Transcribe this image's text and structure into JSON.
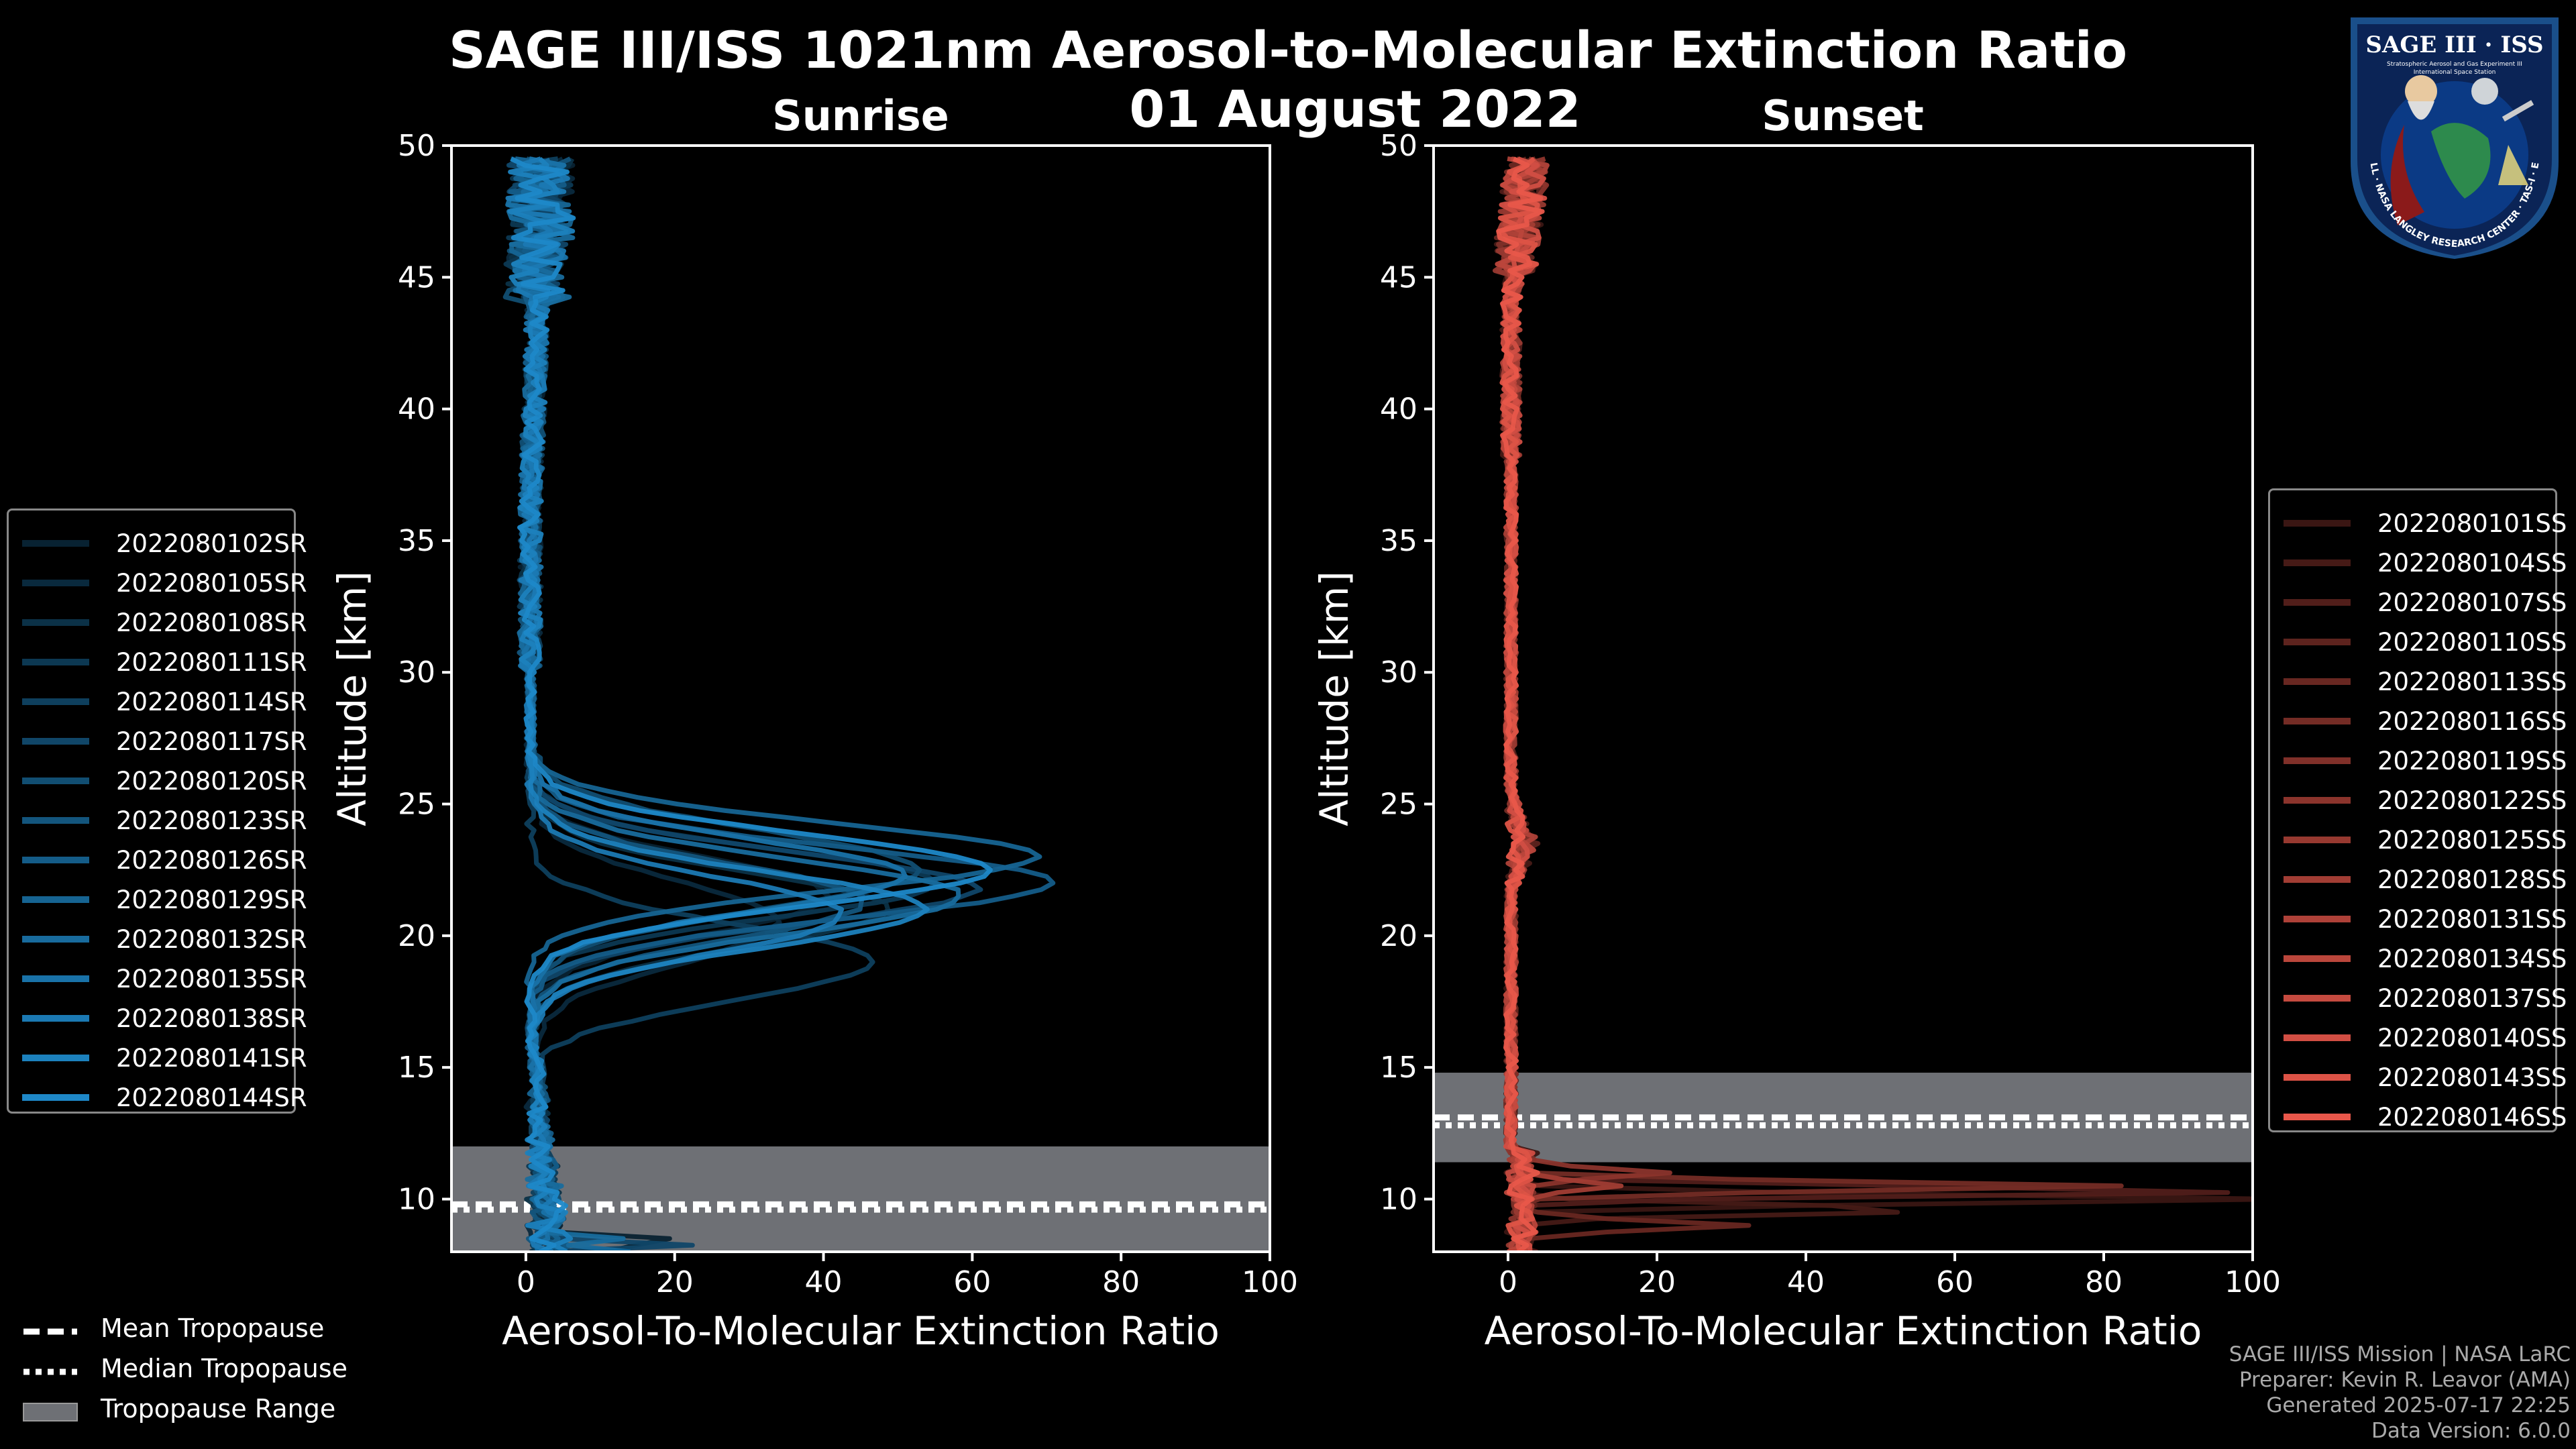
{
  "figure": {
    "title_line1": "SAGE III/ISS 1021nm Aerosol-to-Molecular Extinction Ratio",
    "title_line2": "01 August 2022",
    "credits": [
      "SAGE III/ISS Mission | NASA LaRC",
      "Preparer: Kevin R. Leavor (AMA)",
      "Generated 2025-07-17 22:25",
      "Data Version: 6.0.0"
    ],
    "logo": {
      "top_text": "SAGE III · ISS",
      "line1": "Stratospheric Aerosol and Gas Experiment III",
      "line2": "International Space Station",
      "ring_text": "BALL · NASA LANGLEY RESEARCH CENTER · TAS-I · ESA"
    },
    "bottom_legend": [
      "Mean Tropopause",
      "Median Tropopause",
      "Tropopause Range"
    ]
  },
  "chart_data": [
    {
      "type": "line",
      "title": "Sunrise",
      "xlabel": "Aerosol-To-Molecular Extinction Ratio",
      "ylabel": "Altitude [km]",
      "xlim": [
        -10,
        100
      ],
      "ylim": [
        8,
        50
      ],
      "xticks": [
        0,
        20,
        40,
        60,
        80,
        100
      ],
      "yticks": [
        10,
        15,
        20,
        25,
        30,
        35,
        40,
        45,
        50
      ],
      "color": "#1e88c8",
      "tropopause": {
        "min": 8,
        "max": 12,
        "mean": 9.8,
        "median": 9.6
      },
      "series": [
        {
          "name": "2022080102SR",
          "peak_alt": 21.5,
          "peak_val": 40,
          "width": 2.0
        },
        {
          "name": "2022080105SR",
          "peak_alt": 20.5,
          "peak_val": 33,
          "width": 2.2
        },
        {
          "name": "2022080108SR",
          "peak_alt": 21.0,
          "peak_val": 48,
          "width": 2.0
        },
        {
          "name": "2022080111SR",
          "peak_alt": 22.0,
          "peak_val": 55,
          "width": 1.8
        },
        {
          "name": "2022080114SR",
          "peak_alt": 19.0,
          "peak_val": 46,
          "width": 2.0
        },
        {
          "name": "2022080117SR",
          "peak_alt": 21.8,
          "peak_val": 60,
          "width": 1.9
        },
        {
          "name": "2022080120SR",
          "peak_alt": 22.5,
          "peak_val": 52,
          "width": 2.1
        },
        {
          "name": "2022080123SR",
          "peak_alt": 21.3,
          "peak_val": 45,
          "width": 2.0
        },
        {
          "name": "2022080126SR",
          "peak_alt": 22.0,
          "peak_val": 70,
          "width": 1.9
        },
        {
          "name": "2022080129SR",
          "peak_alt": 23.0,
          "peak_val": 68,
          "width": 1.8
        },
        {
          "name": "2022080132SR",
          "peak_alt": 21.5,
          "peak_val": 58,
          "width": 2.0
        },
        {
          "name": "2022080135SR",
          "peak_alt": 22.3,
          "peak_val": 50,
          "width": 1.9
        },
        {
          "name": "2022080138SR",
          "peak_alt": 20.8,
          "peak_val": 42,
          "width": 2.0
        },
        {
          "name": "2022080141SR",
          "peak_alt": 21.0,
          "peak_val": 53,
          "width": 2.0
        },
        {
          "name": "2022080144SR",
          "peak_alt": 22.5,
          "peak_val": 62,
          "width": 1.9
        }
      ]
    },
    {
      "type": "line",
      "title": "Sunset",
      "xlabel": "Aerosol-To-Molecular Extinction Ratio",
      "ylabel": "Altitude [km]",
      "xlim": [
        -10,
        100
      ],
      "ylim": [
        8,
        50
      ],
      "xticks": [
        0,
        20,
        40,
        60,
        80,
        100
      ],
      "yticks": [
        10,
        15,
        20,
        25,
        30,
        35,
        40,
        45,
        50
      ],
      "color": "#e8574a",
      "tropopause": {
        "min": 11.4,
        "max": 14.8,
        "mean": 13.1,
        "median": 12.8
      },
      "series": [
        {
          "name": "2022080101SS",
          "spike_alt": 10.0,
          "spike_val": 100
        },
        {
          "name": "2022080104SS",
          "spike_alt": 9.6,
          "spike_val": 58
        },
        {
          "name": "2022080107SS",
          "spike_alt": 10.3,
          "spike_val": 100
        },
        {
          "name": "2022080110SS",
          "spike_alt": 0,
          "spike_val": 0
        },
        {
          "name": "2022080113SS",
          "spike_alt": 9.0,
          "spike_val": 31
        },
        {
          "name": "2022080116SS",
          "spike_alt": 10.5,
          "spike_val": 79
        },
        {
          "name": "2022080119SS",
          "spike_alt": 0,
          "spike_val": 0
        },
        {
          "name": "2022080122SS",
          "spike_alt": 11.0,
          "spike_val": 20
        },
        {
          "name": "2022080125SS",
          "spike_alt": 0,
          "spike_val": 0
        },
        {
          "name": "2022080128SS",
          "spike_alt": 10.5,
          "spike_val": 15
        },
        {
          "name": "2022080131SS",
          "spike_alt": 0,
          "spike_val": 0
        },
        {
          "name": "2022080134SS",
          "spike_alt": 0,
          "spike_val": 0
        },
        {
          "name": "2022080137SS",
          "spike_alt": 0,
          "spike_val": 0
        },
        {
          "name": "2022080140SS",
          "spike_alt": 0,
          "spike_val": 0
        },
        {
          "name": "2022080143SS",
          "spike_alt": 0,
          "spike_val": 0
        },
        {
          "name": "2022080146SS",
          "spike_alt": 0,
          "spike_val": 0
        }
      ]
    }
  ],
  "colors": {
    "sunrise": "#1e88c8",
    "sunset": "#e8574a",
    "tropo_fill": "#6e7075"
  }
}
